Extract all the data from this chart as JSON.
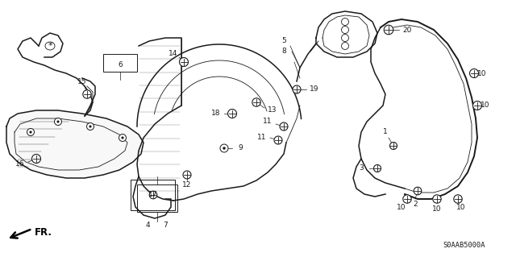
{
  "title": "",
  "background_color": "#ffffff",
  "diagram_code": "S0AAB5000A",
  "line_color": "#1a1a1a",
  "label_color": "#1a1a1a",
  "figsize": [
    6.4,
    3.19
  ],
  "dpi": 100
}
